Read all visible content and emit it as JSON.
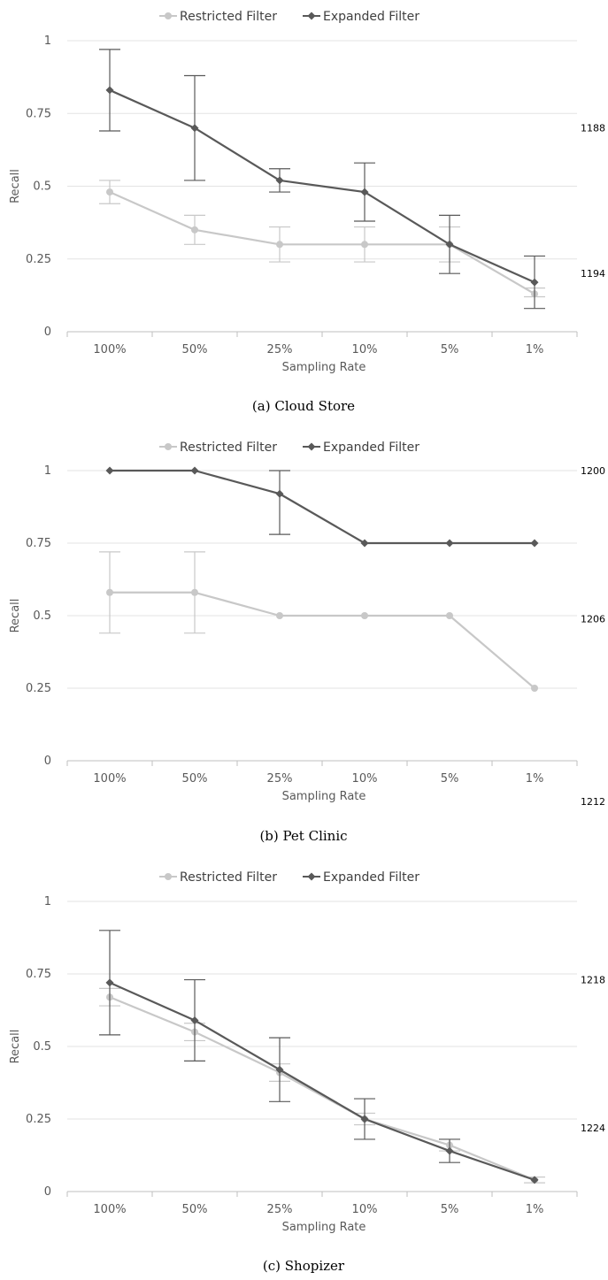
{
  "chart_data": [
    {
      "type": "line",
      "caption": "(a) Cloud Store",
      "xlabel": "Sampling Rate",
      "ylabel": "Recall",
      "categories": [
        "100%",
        "50%",
        "25%",
        "10%",
        "5%",
        "1%"
      ],
      "yticks": [
        "0",
        "0.25",
        "0.5",
        "0.75",
        "1"
      ],
      "ylim": [
        0,
        1
      ],
      "legend_position": "top",
      "grid": true,
      "series": [
        {
          "name": "Restricted Filter",
          "color": "#c8c8c8",
          "marker": "circle",
          "values": [
            0.48,
            0.35,
            0.3,
            0.3,
            0.3,
            0.13
          ],
          "err_low": [
            0.44,
            0.3,
            0.24,
            0.24,
            0.24,
            0.12
          ],
          "err_high": [
            0.52,
            0.4,
            0.36,
            0.36,
            0.36,
            0.15
          ]
        },
        {
          "name": "Expanded Filter",
          "color": "#595959",
          "marker": "diamond",
          "values": [
            0.83,
            0.7,
            0.52,
            0.48,
            0.3,
            0.17
          ],
          "err_low": [
            0.69,
            0.52,
            0.48,
            0.38,
            0.2,
            0.08
          ],
          "err_high": [
            0.97,
            0.88,
            0.56,
            0.58,
            0.4,
            0.26
          ]
        }
      ],
      "line_numbers": [
        {
          "text": "1188",
          "y": 0.7
        },
        {
          "text": "1194",
          "y": 0.2
        }
      ]
    },
    {
      "type": "line",
      "caption": "(b) Pet Clinic",
      "xlabel": "Sampling Rate",
      "ylabel": "Recall",
      "categories": [
        "100%",
        "50%",
        "25%",
        "10%",
        "5%",
        "1%"
      ],
      "yticks": [
        "0",
        "0.25",
        "0.5",
        "0.75",
        "1"
      ],
      "ylim": [
        0,
        1
      ],
      "legend_position": "top",
      "grid": true,
      "series": [
        {
          "name": "Restricted Filter",
          "color": "#c8c8c8",
          "marker": "circle",
          "values": [
            0.58,
            0.58,
            0.5,
            0.5,
            0.5,
            0.25
          ],
          "err_low": [
            0.44,
            0.44,
            0.5,
            0.5,
            0.5,
            0.25
          ],
          "err_high": [
            0.72,
            0.72,
            0.5,
            0.5,
            0.5,
            0.25
          ]
        },
        {
          "name": "Expanded Filter",
          "color": "#595959",
          "marker": "diamond",
          "values": [
            1.0,
            1.0,
            0.92,
            0.75,
            0.75,
            0.75
          ],
          "err_low": [
            1.0,
            1.0,
            0.78,
            0.75,
            0.75,
            0.75
          ],
          "err_high": [
            1.0,
            1.0,
            1.0,
            0.75,
            0.75,
            0.75
          ]
        }
      ],
      "line_numbers": [
        {
          "text": "1200",
          "y": 1.0
        },
        {
          "text": "1206",
          "y": 0.49
        },
        {
          "text": "1212",
          "y": -0.14
        }
      ]
    },
    {
      "type": "line",
      "caption": "(c) Shopizer",
      "xlabel": "Sampling Rate",
      "ylabel": "Recall",
      "categories": [
        "100%",
        "50%",
        "25%",
        "10%",
        "5%",
        "1%"
      ],
      "yticks": [
        "0",
        "0.25",
        "0.5",
        "0.75",
        "1"
      ],
      "ylim": [
        0,
        1
      ],
      "legend_position": "top",
      "grid": true,
      "series": [
        {
          "name": "Restricted Filter",
          "color": "#c8c8c8",
          "marker": "circle",
          "values": [
            0.67,
            0.55,
            0.41,
            0.25,
            0.16,
            0.04
          ],
          "err_low": [
            0.64,
            0.52,
            0.38,
            0.23,
            0.14,
            0.03
          ],
          "err_high": [
            0.7,
            0.58,
            0.44,
            0.27,
            0.18,
            0.05
          ]
        },
        {
          "name": "Expanded Filter",
          "color": "#595959",
          "marker": "diamond",
          "values": [
            0.72,
            0.59,
            0.42,
            0.25,
            0.14,
            0.04
          ],
          "err_low": [
            0.54,
            0.45,
            0.31,
            0.18,
            0.1,
            0.04
          ],
          "err_high": [
            0.9,
            0.73,
            0.53,
            0.32,
            0.18,
            0.04
          ]
        }
      ],
      "line_numbers": [
        {
          "text": "1218",
          "y": 0.73
        },
        {
          "text": "1224",
          "y": 0.22
        }
      ]
    }
  ]
}
